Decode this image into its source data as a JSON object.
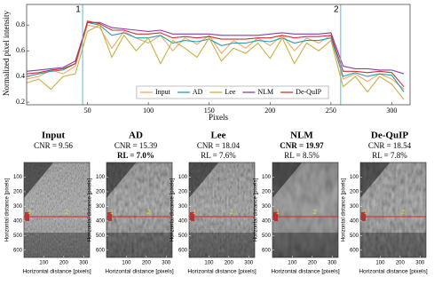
{
  "chart_data": {
    "type": "line",
    "x_label": "Pixels",
    "y_label": "Normalized pixel intensity",
    "xlim": [
      0,
      315
    ],
    "ylim": [
      0.18,
      0.96
    ],
    "xticks": [
      50,
      100,
      150,
      200,
      250,
      300
    ],
    "yticks": [
      0.2,
      0.4,
      0.6,
      0.8
    ],
    "legend": "bottom",
    "markers": [
      {
        "label": "1",
        "x": 46,
        "color": "#5bb8e0"
      },
      {
        "label": "2",
        "x": 258,
        "color": "#5bb8e0"
      }
    ],
    "x": [
      0,
      10,
      20,
      30,
      40,
      50,
      60,
      70,
      80,
      90,
      100,
      110,
      120,
      130,
      140,
      150,
      160,
      170,
      180,
      190,
      200,
      210,
      220,
      230,
      240,
      250,
      260,
      270,
      280,
      290,
      300,
      310
    ],
    "series": [
      {
        "name": "Input",
        "color": "#f0a868",
        "values": [
          0.38,
          0.4,
          0.45,
          0.42,
          0.48,
          0.8,
          0.78,
          0.62,
          0.75,
          0.7,
          0.66,
          0.72,
          0.6,
          0.7,
          0.65,
          0.72,
          0.58,
          0.68,
          0.62,
          0.7,
          0.64,
          0.72,
          0.6,
          0.7,
          0.66,
          0.72,
          0.38,
          0.42,
          0.36,
          0.42,
          0.38,
          0.3
        ]
      },
      {
        "name": "AD",
        "color": "#2a9bb0",
        "values": [
          0.4,
          0.42,
          0.44,
          0.45,
          0.5,
          0.82,
          0.8,
          0.72,
          0.74,
          0.7,
          0.7,
          0.72,
          0.66,
          0.68,
          0.67,
          0.69,
          0.64,
          0.66,
          0.66,
          0.68,
          0.67,
          0.7,
          0.66,
          0.68,
          0.68,
          0.7,
          0.4,
          0.43,
          0.4,
          0.42,
          0.41,
          0.28
        ]
      },
      {
        "name": "Lee",
        "color": "#c8b040",
        "values": [
          0.35,
          0.38,
          0.3,
          0.4,
          0.42,
          0.75,
          0.8,
          0.55,
          0.72,
          0.6,
          0.7,
          0.5,
          0.68,
          0.62,
          0.55,
          0.7,
          0.52,
          0.62,
          0.58,
          0.66,
          0.54,
          0.7,
          0.5,
          0.66,
          0.6,
          0.68,
          0.32,
          0.4,
          0.28,
          0.4,
          0.34,
          0.22
        ]
      },
      {
        "name": "NLM",
        "color": "#8a3ca8",
        "values": [
          0.44,
          0.45,
          0.46,
          0.47,
          0.52,
          0.82,
          0.82,
          0.78,
          0.77,
          0.76,
          0.75,
          0.76,
          0.73,
          0.73,
          0.73,
          0.73,
          0.72,
          0.72,
          0.72,
          0.72,
          0.73,
          0.74,
          0.73,
          0.73,
          0.73,
          0.74,
          0.48,
          0.46,
          0.46,
          0.45,
          0.45,
          0.42
        ]
      },
      {
        "name": "De-QuIP",
        "color": "#d03030",
        "values": [
          0.42,
          0.43,
          0.45,
          0.46,
          0.5,
          0.83,
          0.81,
          0.76,
          0.76,
          0.73,
          0.73,
          0.74,
          0.7,
          0.71,
          0.7,
          0.71,
          0.69,
          0.69,
          0.69,
          0.7,
          0.7,
          0.72,
          0.7,
          0.71,
          0.71,
          0.72,
          0.44,
          0.44,
          0.43,
          0.44,
          0.43,
          0.32
        ]
      }
    ]
  },
  "image_panels": {
    "x_label": "Horizontal distance [pixels]",
    "y_label": "Horizontal distance [pixels]",
    "xlim": [
      0,
      330
    ],
    "ylim": [
      0,
      650
    ],
    "xticks": [
      100,
      200,
      300
    ],
    "yticks": [
      100,
      200,
      300,
      400,
      500,
      600
    ],
    "panels": [
      {
        "title": "Input",
        "lines": [
          {
            "text": "CNR = 9.56"
          }
        ]
      },
      {
        "title": "AD",
        "lines": [
          {
            "text": "CNR = 15.39"
          },
          {
            "text": "RL = 7.0%",
            "bold": true
          }
        ]
      },
      {
        "title": "Lee",
        "lines": [
          {
            "text": "CNR = 18.04"
          },
          {
            "text": "RL = 7.6%"
          }
        ]
      },
      {
        "title": "NLM",
        "lines": [
          {
            "text": "CNR = 19.97",
            "bold": true
          },
          {
            "text": "RL = 8.5%"
          }
        ]
      },
      {
        "title": "De-QuIP",
        "lines": [
          {
            "text": "CNR = 18.54"
          },
          {
            "text": "RL = 7.8%"
          }
        ]
      }
    ]
  }
}
